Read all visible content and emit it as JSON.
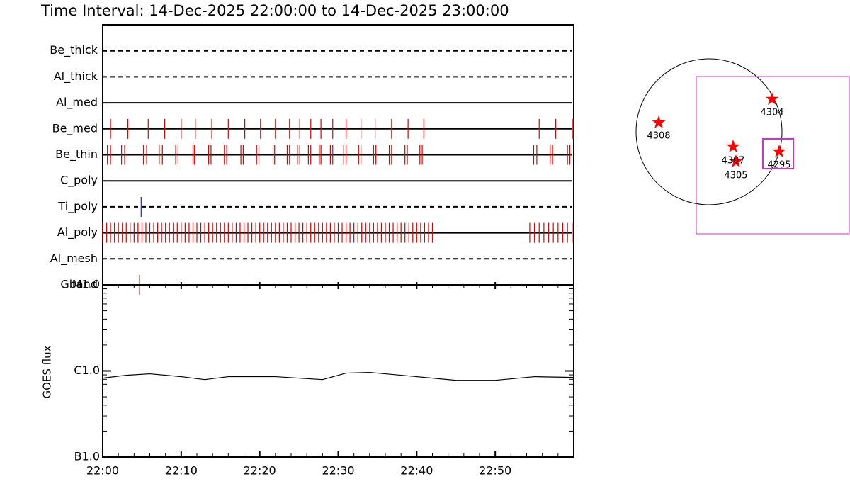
{
  "chart_data": [
    {
      "type": "timeline",
      "title": "Time Interval: 14-Dec-2025 22:00:00 to 14-Dec-2025 23:00:00",
      "xlim": [
        0,
        60
      ],
      "xticks": [
        {
          "value": 0,
          "label": "22:00"
        },
        {
          "value": 10,
          "label": "22:10"
        },
        {
          "value": 20,
          "label": "22:20"
        },
        {
          "value": 30,
          "label": "22:30"
        },
        {
          "value": 40,
          "label": "22:40"
        },
        {
          "value": 50,
          "label": "22:50"
        }
      ],
      "rows": [
        {
          "name": "Be_thick",
          "style": "dashed",
          "color": "#e00000",
          "times": []
        },
        {
          "name": "Al_thick",
          "style": "dashed",
          "color": "#e00000",
          "times": []
        },
        {
          "name": "Al_med",
          "style": "solid",
          "color": "#e00000",
          "times": []
        },
        {
          "name": "Be_med",
          "style": "solid",
          "color": "#e00000",
          "times": [
            1.0,
            3.2,
            5.8,
            7.9,
            10.0,
            11.8,
            13.9,
            16.0,
            18.1,
            20.1,
            22.0,
            23.8,
            25.1,
            26.5,
            27.8,
            29.3,
            31.0,
            32.9,
            34.7,
            36.8,
            38.9,
            40.9,
            55.6,
            57.7,
            59.9
          ]
        },
        {
          "name": "Be_thin",
          "style": "solid",
          "color": "#e00000",
          "times": [
            0.6,
            1.0,
            2.4,
            2.8,
            5.2,
            5.6,
            7.2,
            7.6,
            9.3,
            9.6,
            11.5,
            11.7,
            13.5,
            13.8,
            15.5,
            15.8,
            17.6,
            17.9,
            19.6,
            19.9,
            21.7,
            21.9,
            23.5,
            23.8,
            24.8,
            25.1,
            26.2,
            26.5,
            27.6,
            27.8,
            29.0,
            29.3,
            30.7,
            31.0,
            32.6,
            32.9,
            34.5,
            34.8,
            36.5,
            36.8,
            38.5,
            38.8,
            40.4,
            40.7,
            54.9,
            55.3,
            57.0,
            57.3,
            59.2,
            59.5
          ]
        },
        {
          "name": "C_poly",
          "style": "solid",
          "color": "#e00000",
          "times": []
        },
        {
          "name": "Ti_poly",
          "style": "dashed",
          "color": "#1a1aff",
          "times": [
            4.9
          ]
        },
        {
          "name": "Al_poly",
          "style": "solid",
          "color": "#e00000",
          "times": [
            0,
            0.5,
            1,
            1.5,
            2,
            2.5,
            3,
            3.5,
            4,
            4.5,
            5,
            5.5,
            6,
            6.5,
            7,
            7.5,
            8,
            8.5,
            9,
            9.5,
            10,
            10.5,
            11,
            11.5,
            12,
            12.5,
            13,
            13.5,
            14,
            14.5,
            15,
            15.5,
            16,
            16.5,
            17,
            17.5,
            18,
            18.5,
            19,
            19.5,
            20,
            20.5,
            21,
            21.5,
            22,
            22.5,
            23,
            23.5,
            24,
            24.5,
            25,
            25.5,
            26,
            26.5,
            27,
            27.5,
            28,
            28.5,
            29,
            29.5,
            30,
            30.5,
            31,
            31.5,
            32,
            32.5,
            33,
            33.5,
            34,
            34.5,
            35,
            35.5,
            36,
            36.5,
            37,
            37.5,
            38,
            38.5,
            39,
            39.5,
            40,
            40.5,
            41,
            41.5,
            42,
            54.4,
            55.0,
            55.6,
            56.2,
            56.8,
            57.4,
            58.0,
            58.6,
            59.2,
            59.8
          ]
        },
        {
          "name": "Al_mesh",
          "style": "dashed",
          "color": "#e00000",
          "times": []
        },
        {
          "name": "Gband",
          "style": "dashed",
          "color": "#e00000",
          "times": [
            4.7
          ]
        }
      ]
    },
    {
      "type": "line",
      "y_label": "GOES flux",
      "log_scale": true,
      "color": "#000000",
      "xlim": [
        0,
        60
      ],
      "ylim": [
        1e-07,
        1e-05
      ],
      "yticks": [
        {
          "value": 1e-05,
          "label": "M1.0"
        },
        {
          "value": 1e-06,
          "label": "C1.0"
        },
        {
          "value": 1e-07,
          "label": "B1.0"
        }
      ],
      "x": [
        0,
        3,
        6,
        10,
        13,
        16,
        22,
        28,
        31,
        34,
        40,
        45,
        50,
        55,
        60
      ],
      "values": [
        8.25e-07,
        8.91e-07,
        9.26e-07,
        8.58e-07,
        7.94e-07,
        8.58e-07,
        8.58e-07,
        7.94e-07,
        9.44e-07,
        9.62e-07,
        8.58e-07,
        7.79e-07,
        7.79e-07,
        8.58e-07,
        8.41e-07
      ]
    }
  ],
  "sun_map": {
    "regions": [
      "4308",
      "4304",
      "4307",
      "4305",
      "4295"
    ]
  }
}
